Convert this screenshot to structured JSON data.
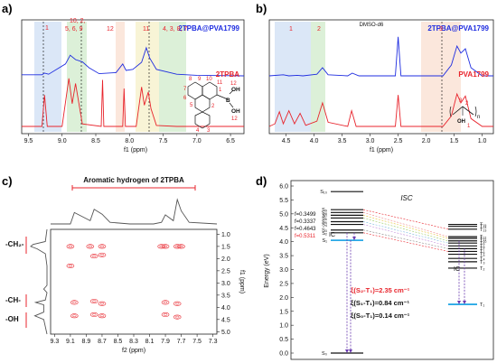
{
  "colors": {
    "blue": "#1f2de0",
    "red": "#e8242c",
    "purple": "#6a3ab0",
    "cyan": "#2aa9e6",
    "blue_region": "#dbe7f7",
    "green_region": "#dcf0d8",
    "peach_region": "#fbe7dc",
    "yellow_region": "#f8f4d6"
  },
  "panels": {
    "a": {
      "label": "a)",
      "xlabel": "f1 (ppm)",
      "xticks": [
        "9.5",
        "9.0",
        "8.5",
        "8.0",
        "7.5",
        "7.0",
        "6.5"
      ],
      "top_label": "2TPBA@PVA1799",
      "bottom_label": "2TPBA",
      "peak_labels": [
        "1",
        "10, 2,",
        "5, 6, 9",
        "12",
        "11",
        "4, 3, 8, 7"
      ],
      "struct_labels": [
        "7",
        "8",
        "9",
        "10",
        "11",
        "12",
        "6",
        "5",
        "1",
        "2",
        "3",
        "4",
        "B",
        "OH",
        "OH",
        "12"
      ]
    },
    "b": {
      "label": "b)",
      "xlabel": "f1 (ppm)",
      "xticks": [
        "4.5",
        "4.0",
        "3.5",
        "3.0",
        "2.5",
        "2.0",
        "1.5",
        "1.0"
      ],
      "top_label": "2TPBA@PVA1799",
      "bottom_label": "PVA1799",
      "solvent_label": "DMSO-d6",
      "peak_labels": [
        "1",
        "2",
        "3"
      ],
      "struct_labels": [
        "3",
        "2",
        "1",
        "OH",
        "n"
      ]
    },
    "c": {
      "label": "c)",
      "title": "Aromatic hydrogen of 2TPBA",
      "xlabel": "f2 (ppm)",
      "ylabel": "f1 (ppm)",
      "xticks": [
        "9.3",
        "9.1",
        "8.9",
        "8.7",
        "8.5",
        "8.3",
        "8.1",
        "7.9",
        "7.7",
        "7.5",
        "7.3"
      ],
      "yticks": [
        "1.0",
        "1.5",
        "2.0",
        "2.5",
        "3.0",
        "3.5",
        "4.0",
        "4.5",
        "5.0"
      ],
      "group_labels": [
        "-CH₂-",
        "-CH-",
        "-OH"
      ]
    },
    "d": {
      "label": "d)",
      "ylabel": "Energy (eV)",
      "yticks": [
        "6.0",
        "5.5",
        "5.0",
        "4.5",
        "4.0",
        "3.5",
        "3.0",
        "2.5",
        "2.0",
        "1.5",
        "1.0",
        "0.5",
        "0.0"
      ],
      "isc_label": "ISC",
      "ic_labels": [
        "IC",
        "IC"
      ],
      "osc": [
        "f=0.3499",
        "f=0.3337",
        "f=0.4643",
        "f=0.5311"
      ],
      "singlet_labels": [
        "S₁₀",
        "S₉",
        "S₈",
        "S₇",
        "S₆",
        "S₅",
        "S₄",
        "S₃",
        "S₂",
        "S₁",
        "S₀"
      ],
      "triplet_labels": [
        "T₁₅",
        "T₁₄",
        "T₁₃",
        "T₁₂",
        "T₁₁",
        "T₁₀",
        "T₉",
        "T₈",
        "T₇",
        "T₆",
        "T₅",
        "T₄",
        "T₃",
        "T₂",
        "T₁"
      ],
      "soc": [
        "ξ(S₂-T₁)=2.35 cm⁻¹",
        "ξ(S₁-T₁)=0.84 cm⁻¹",
        "ξ(S₀-T₁)=0.14 cm⁻¹"
      ]
    }
  },
  "chart_data": [
    {
      "type": "line",
      "panel": "a",
      "xlabel": "f1 (ppm)",
      "xlim": [
        9.6,
        6.3
      ],
      "series": [
        {
          "name": "2TPBA@PVA1799",
          "color": "#1f2de0",
          "x": [
            9.6,
            9.3,
            9.26,
            9.2,
            8.95,
            8.88,
            8.8,
            8.7,
            8.6,
            8.45,
            8.2,
            8.1,
            8.05,
            7.95,
            7.82,
            7.75,
            7.7,
            7.6,
            7.3,
            7.0,
            6.3
          ],
          "y": [
            0.02,
            0.02,
            0.05,
            0.03,
            0.22,
            0.38,
            0.3,
            0.26,
            0.15,
            0.04,
            0.06,
            0.22,
            0.1,
            0.12,
            0.25,
            0.52,
            0.33,
            0.12,
            0.03,
            0.01,
            0.0
          ]
        },
        {
          "name": "2TPBA",
          "color": "#e8242c",
          "x": [
            9.6,
            9.3,
            9.26,
            9.22,
            9.0,
            8.9,
            8.85,
            8.8,
            8.7,
            8.42,
            8.4,
            8.38,
            8.1,
            8.08,
            8.06,
            7.9,
            7.82,
            7.78,
            7.72,
            7.68,
            7.6,
            7.3,
            6.3
          ],
          "y": [
            0.0,
            0.0,
            0.62,
            0.0,
            0.0,
            0.95,
            0.45,
            0.85,
            0.05,
            0.0,
            0.92,
            0.0,
            0.0,
            0.75,
            0.0,
            0.0,
            0.78,
            0.42,
            0.68,
            0.35,
            0.02,
            0.0,
            0.0
          ]
        }
      ]
    },
    {
      "type": "line",
      "panel": "b",
      "xlabel": "f1 (ppm)",
      "xlim": [
        4.8,
        0.8
      ],
      "series": [
        {
          "name": "2TPBA@PVA1799",
          "color": "#1f2de0",
          "x": [
            4.8,
            4.55,
            4.45,
            4.3,
            4.2,
            3.95,
            3.85,
            3.75,
            3.4,
            3.32,
            3.2,
            2.55,
            2.5,
            2.45,
            1.7,
            1.55,
            1.45,
            1.38,
            1.3,
            1.2,
            1.0,
            0.8
          ],
          "y": [
            0.0,
            0.02,
            0.0,
            0.01,
            0.0,
            0.03,
            0.15,
            0.02,
            0.0,
            0.05,
            0.0,
            0.0,
            0.72,
            0.0,
            0.0,
            0.2,
            0.55,
            0.42,
            0.5,
            0.15,
            0.0,
            0.0
          ]
        },
        {
          "name": "PVA1799",
          "color": "#e8242c",
          "x": [
            4.8,
            4.7,
            4.62,
            4.55,
            4.45,
            4.35,
            4.25,
            4.15,
            3.95,
            3.85,
            3.75,
            3.4,
            3.33,
            3.25,
            2.55,
            2.5,
            2.45,
            1.7,
            1.55,
            1.45,
            1.38,
            1.3,
            1.2,
            1.0,
            0.8
          ],
          "y": [
            0.0,
            0.05,
            0.28,
            0.05,
            0.3,
            0.05,
            0.25,
            0.02,
            0.1,
            0.45,
            0.08,
            0.0,
            0.3,
            0.0,
            0.0,
            0.6,
            0.0,
            0.0,
            0.2,
            0.62,
            0.45,
            0.58,
            0.15,
            0.0,
            0.0
          ]
        }
      ]
    },
    {
      "type": "heatmap",
      "panel": "c",
      "xlabel": "f2 (ppm)",
      "ylabel": "f1 (ppm)",
      "xlim": [
        9.35,
        7.25
      ],
      "ylim": [
        0.8,
        5.1
      ],
      "cross_peaks_ppm": [
        [
          9.1,
          1.5
        ],
        [
          8.85,
          1.5
        ],
        [
          8.7,
          1.5
        ],
        [
          7.95,
          1.5
        ],
        [
          7.9,
          1.5
        ],
        [
          7.75,
          1.5
        ],
        [
          7.7,
          1.5
        ],
        [
          9.1,
          2.3
        ],
        [
          8.8,
          1.9
        ],
        [
          8.7,
          1.85
        ],
        [
          9.05,
          3.8
        ],
        [
          8.8,
          3.75
        ],
        [
          8.7,
          3.85
        ],
        [
          7.9,
          3.8
        ],
        [
          7.75,
          3.85
        ],
        [
          9.05,
          4.35
        ],
        [
          8.8,
          4.3
        ],
        [
          8.7,
          4.35
        ],
        [
          7.9,
          4.3
        ],
        [
          7.75,
          4.4
        ]
      ],
      "projection_f2": {
        "x": [
          9.35,
          9.1,
          9.05,
          8.85,
          8.8,
          8.7,
          8.6,
          8.35,
          8.05,
          7.95,
          7.9,
          7.8,
          7.75,
          7.7,
          7.6,
          7.25
        ],
        "y": [
          0.0,
          0.0,
          0.35,
          0.1,
          0.45,
          0.3,
          0.05,
          0.0,
          0.0,
          0.05,
          0.28,
          0.1,
          0.75,
          0.4,
          0.05,
          0.0
        ]
      },
      "projection_f1": {
        "y": [
          0.8,
          1.3,
          1.42,
          1.5,
          1.6,
          1.8,
          2.3,
          3.1,
          3.25,
          3.4,
          3.7,
          3.8,
          3.9,
          4.2,
          4.35,
          4.5,
          5.1
        ],
        "x": [
          0.0,
          0.1,
          0.85,
          1.0,
          0.6,
          0.1,
          0.0,
          0.0,
          0.2,
          0.0,
          0.1,
          0.7,
          0.2,
          0.2,
          0.75,
          0.2,
          0.0
        ]
      }
    },
    {
      "type": "line",
      "panel": "d",
      "ylabel": "Energy (eV)",
      "ylim": [
        0.0,
        6.0
      ],
      "singlets_eV": [
        5.8,
        5.15,
        5.05,
        4.95,
        4.85,
        4.72,
        4.62,
        4.42,
        4.32,
        4.05,
        0.0
      ],
      "triplets_eV": [
        4.62,
        4.55,
        4.45,
        4.18,
        4.12,
        4.03,
        3.95,
        3.85,
        3.75,
        3.65,
        3.55,
        3.4,
        3.28,
        3.05,
        1.75
      ],
      "oscillator_strengths": [
        0.3499,
        0.3337,
        0.4643,
        0.5311
      ],
      "soc_cm-1": {
        "S2-T1": 2.35,
        "S1-T1": 0.84,
        "S0-T1": 0.14
      }
    }
  ]
}
